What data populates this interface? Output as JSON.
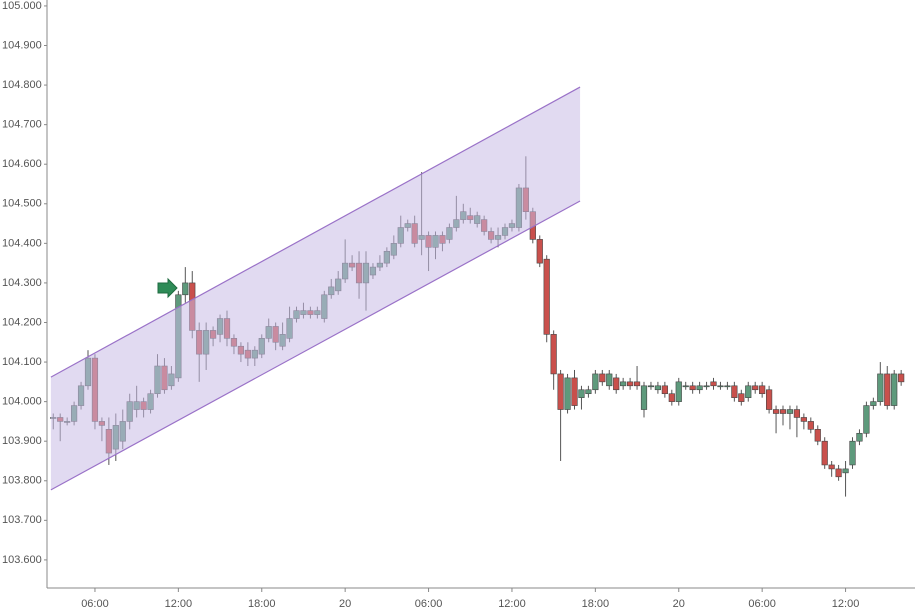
{
  "chart_data": {
    "type": "candlestick",
    "x": [
      3,
      3.5,
      4,
      4.5,
      5,
      5.5,
      6,
      6.5,
      7,
      7.5,
      8,
      8.5,
      9,
      9.5,
      10,
      10.5,
      11,
      11.5,
      12,
      12.5,
      13,
      13.5,
      14,
      14.5,
      15,
      15.5,
      16,
      16.5,
      17,
      17.5,
      18,
      18.5,
      19,
      19.5,
      20,
      20.5,
      21,
      21.5,
      22,
      22.5,
      23,
      23.5,
      24,
      24.5,
      25,
      25.5,
      26,
      26.5,
      27,
      27.5,
      28,
      28.5,
      29,
      29.5,
      30,
      30.5,
      31,
      31.5,
      32,
      32.5,
      33,
      33.5,
      34,
      34.5,
      35,
      35.5,
      36,
      36.5,
      37,
      37.5,
      38,
      38.5,
      39,
      39.5,
      40,
      40.5,
      41,
      41.5,
      42,
      42.5,
      43,
      43.5,
      44,
      44.5,
      45,
      45.5,
      46,
      46.5,
      47,
      47.5,
      48,
      48.5,
      49,
      49.5,
      50,
      50.5,
      51,
      51.5,
      52,
      52.5,
      53,
      53.5,
      54,
      54.5,
      55,
      55.5,
      56,
      56.5,
      57,
      57.5,
      58,
      58.5,
      59,
      59.5,
      60,
      60.5,
      61,
      61.5,
      62,
      62.5,
      63,
      63.5,
      64
    ],
    "open": [
      103.96,
      103.96,
      103.95,
      103.95,
      103.99,
      104.04,
      104.11,
      103.95,
      103.93,
      103.88,
      103.9,
      103.95,
      103.98,
      104.0,
      103.98,
      104.02,
      104.09,
      104.04,
      104.06,
      104.27,
      104.3,
      104.18,
      104.12,
      104.18,
      104.17,
      104.21,
      104.16,
      104.14,
      104.13,
      104.11,
      104.12,
      104.16,
      104.19,
      104.14,
      104.16,
      104.21,
      104.22,
      104.23,
      104.22,
      104.21,
      104.27,
      104.28,
      104.31,
      104.35,
      104.35,
      104.3,
      104.32,
      104.34,
      104.35,
      104.37,
      104.4,
      104.44,
      104.45,
      104.41,
      104.42,
      104.39,
      104.42,
      104.41,
      104.44,
      104.46,
      104.47,
      104.45,
      104.46,
      104.43,
      104.41,
      104.42,
      104.44,
      104.44,
      104.54,
      104.48,
      104.41,
      104.36,
      104.17,
      104.07,
      103.98,
      104.06,
      104.01,
      104.02,
      104.03,
      104.07,
      104.04,
      104.06,
      104.04,
      104.05,
      104.05,
      103.98,
      104.04,
      104.03,
      104.04,
      104.02,
      104.0,
      104.04,
      104.04,
      104.03,
      104.04,
      104.05,
      104.04,
      104.04,
      104.04,
      104.02,
      104.01,
      104.04,
      104.04,
      104.03,
      103.98,
      103.98,
      103.97,
      103.98,
      103.96,
      103.95,
      103.93,
      103.9,
      103.84,
      103.83,
      103.82,
      103.84,
      103.9,
      103.92,
      103.99,
      104.0,
      104.07,
      103.99,
      104.07
    ],
    "high": [
      103.97,
      103.97,
      103.96,
      104.0,
      104.05,
      104.13,
      104.12,
      103.96,
      103.96,
      103.97,
      103.98,
      104.02,
      104.04,
      104.01,
      104.03,
      104.12,
      104.11,
      104.09,
      104.28,
      104.34,
      104.33,
      104.2,
      104.2,
      104.19,
      104.22,
      104.23,
      104.17,
      104.15,
      104.15,
      104.14,
      104.17,
      104.21,
      104.2,
      104.2,
      104.24,
      104.24,
      104.25,
      104.24,
      104.24,
      104.28,
      104.31,
      104.33,
      104.41,
      104.37,
      104.38,
      104.38,
      104.35,
      104.37,
      104.39,
      104.42,
      104.47,
      104.46,
      104.47,
      104.58,
      104.43,
      104.43,
      104.43,
      104.45,
      104.52,
      104.5,
      104.49,
      104.48,
      104.47,
      104.44,
      104.44,
      104.45,
      104.46,
      104.55,
      104.62,
      104.49,
      104.42,
      104.37,
      104.18,
      104.08,
      104.07,
      104.08,
      104.04,
      104.04,
      104.08,
      104.08,
      104.08,
      104.07,
      104.06,
      104.06,
      104.09,
      104.05,
      104.05,
      104.05,
      104.05,
      104.03,
      104.06,
      104.05,
      104.05,
      104.05,
      104.05,
      104.06,
      104.05,
      104.05,
      104.05,
      104.03,
      104.05,
      104.05,
      104.05,
      104.04,
      103.99,
      103.99,
      103.99,
      103.99,
      103.97,
      103.96,
      103.94,
      103.91,
      103.85,
      103.84,
      103.85,
      103.91,
      103.93,
      104.0,
      104.01,
      104.1,
      104.09,
      104.08,
      104.08
    ],
    "low": [
      103.93,
      103.9,
      103.94,
      103.94,
      103.98,
      104.03,
      103.93,
      103.9,
      103.84,
      103.85,
      103.88,
      103.93,
      103.96,
      103.96,
      103.97,
      104.01,
      104.02,
      104.03,
      104.05,
      104.25,
      104.16,
      104.05,
      104.08,
      104.14,
      104.15,
      104.14,
      104.12,
      104.1,
      104.09,
      104.09,
      104.11,
      104.15,
      104.13,
      104.13,
      104.15,
      104.2,
      104.21,
      104.21,
      104.21,
      104.2,
      104.26,
      104.27,
      104.3,
      104.33,
      104.26,
      104.23,
      104.31,
      104.33,
      104.34,
      104.36,
      104.39,
      104.43,
      104.39,
      104.37,
      104.33,
      104.36,
      104.38,
      104.4,
      104.43,
      104.45,
      104.45,
      104.44,
      104.42,
      104.4,
      104.39,
      104.41,
      104.43,
      104.43,
      104.46,
      104.4,
      104.34,
      104.15,
      104.03,
      103.85,
      103.97,
      103.98,
      103.98,
      104.01,
      104.02,
      104.04,
      104.03,
      104.02,
      104.03,
      104.03,
      104.03,
      103.96,
      104.03,
      104.02,
      104.01,
      103.99,
      103.99,
      104.03,
      104.02,
      104.02,
      104.03,
      104.03,
      104.03,
      104.03,
      104.0,
      103.99,
      104.0,
      104.02,
      104.01,
      103.97,
      103.92,
      103.94,
      103.93,
      103.91,
      103.93,
      103.92,
      103.89,
      103.83,
      103.81,
      103.8,
      103.76,
      103.83,
      103.89,
      103.91,
      103.98,
      103.99,
      103.98,
      103.98,
      104.04
    ],
    "close": [
      103.96,
      103.95,
      103.95,
      103.99,
      104.04,
      104.11,
      103.95,
      103.94,
      103.87,
      103.94,
      103.95,
      104.0,
      104.0,
      103.98,
      104.02,
      104.09,
      104.03,
      104.07,
      104.27,
      104.3,
      104.18,
      104.12,
      104.18,
      104.16,
      104.21,
      104.16,
      104.14,
      104.12,
      104.11,
      104.13,
      104.16,
      104.19,
      104.15,
      104.17,
      104.21,
      104.23,
      104.23,
      104.22,
      104.23,
      104.27,
      104.29,
      104.31,
      104.35,
      104.34,
      104.3,
      104.35,
      104.34,
      104.35,
      104.38,
      104.4,
      104.44,
      104.45,
      104.4,
      104.42,
      104.39,
      104.42,
      104.4,
      104.44,
      104.46,
      104.48,
      104.46,
      104.47,
      104.43,
      104.41,
      104.42,
      104.44,
      104.45,
      104.54,
      104.48,
      104.41,
      104.35,
      104.17,
      104.07,
      103.98,
      104.06,
      103.99,
      104.03,
      104.03,
      104.07,
      104.05,
      104.07,
      104.03,
      104.05,
      104.04,
      104.04,
      104.04,
      104.04,
      104.04,
      104.02,
      104.0,
      104.05,
      104.04,
      104.03,
      104.04,
      104.04,
      104.04,
      104.04,
      104.04,
      104.01,
      104.0,
      104.04,
      104.03,
      104.02,
      103.98,
      103.97,
      103.97,
      103.98,
      103.96,
      103.95,
      103.93,
      103.9,
      103.84,
      103.83,
      103.81,
      103.83,
      103.9,
      103.92,
      103.99,
      104.0,
      104.07,
      103.99,
      104.07,
      104.05
    ],
    "up_color": "#5e9a7c",
    "down_color": "#c9504c",
    "channel": {
      "x": [
        2.83,
        40.9
      ],
      "upper": [
        104.062,
        104.795
      ],
      "lower": [
        103.777,
        104.507
      ],
      "color": "#9a72c8",
      "fill": "#c9bce6"
    },
    "xlim": [
      2.55,
      64.78
    ],
    "ylim": [
      103.529,
      105.015
    ],
    "xticks": [
      {
        "value": 6,
        "label": "06:00"
      },
      {
        "value": 12,
        "label": "12:00"
      },
      {
        "value": 18,
        "label": "18:00"
      },
      {
        "value": 24,
        "label": "20"
      },
      {
        "value": 30,
        "label": "06:00"
      },
      {
        "value": 36,
        "label": "12:00"
      },
      {
        "value": 42,
        "label": "18:00"
      },
      {
        "value": 48,
        "label": "20"
      },
      {
        "value": 54,
        "label": "06:00"
      },
      {
        "value": 60,
        "label": "12:00"
      }
    ],
    "yticks": [
      {
        "value": 103.6,
        "label": "103.600"
      },
      {
        "value": 103.7,
        "label": "103.700"
      },
      {
        "value": 103.8,
        "label": "103.800"
      },
      {
        "value": 103.9,
        "label": "103.900"
      },
      {
        "value": 104.0,
        "label": "104.000"
      },
      {
        "value": 104.1,
        "label": "104.100"
      },
      {
        "value": 104.2,
        "label": "104.200"
      },
      {
        "value": 104.3,
        "label": "104.300"
      },
      {
        "value": 104.4,
        "label": "104.400"
      },
      {
        "value": 104.5,
        "label": "104.500"
      },
      {
        "value": 104.6,
        "label": "104.600"
      },
      {
        "value": 104.7,
        "label": "104.700"
      },
      {
        "value": 104.8,
        "label": "104.800"
      },
      {
        "value": 104.9,
        "label": "104.900"
      },
      {
        "value": 105.0,
        "label": "105.000"
      }
    ]
  }
}
